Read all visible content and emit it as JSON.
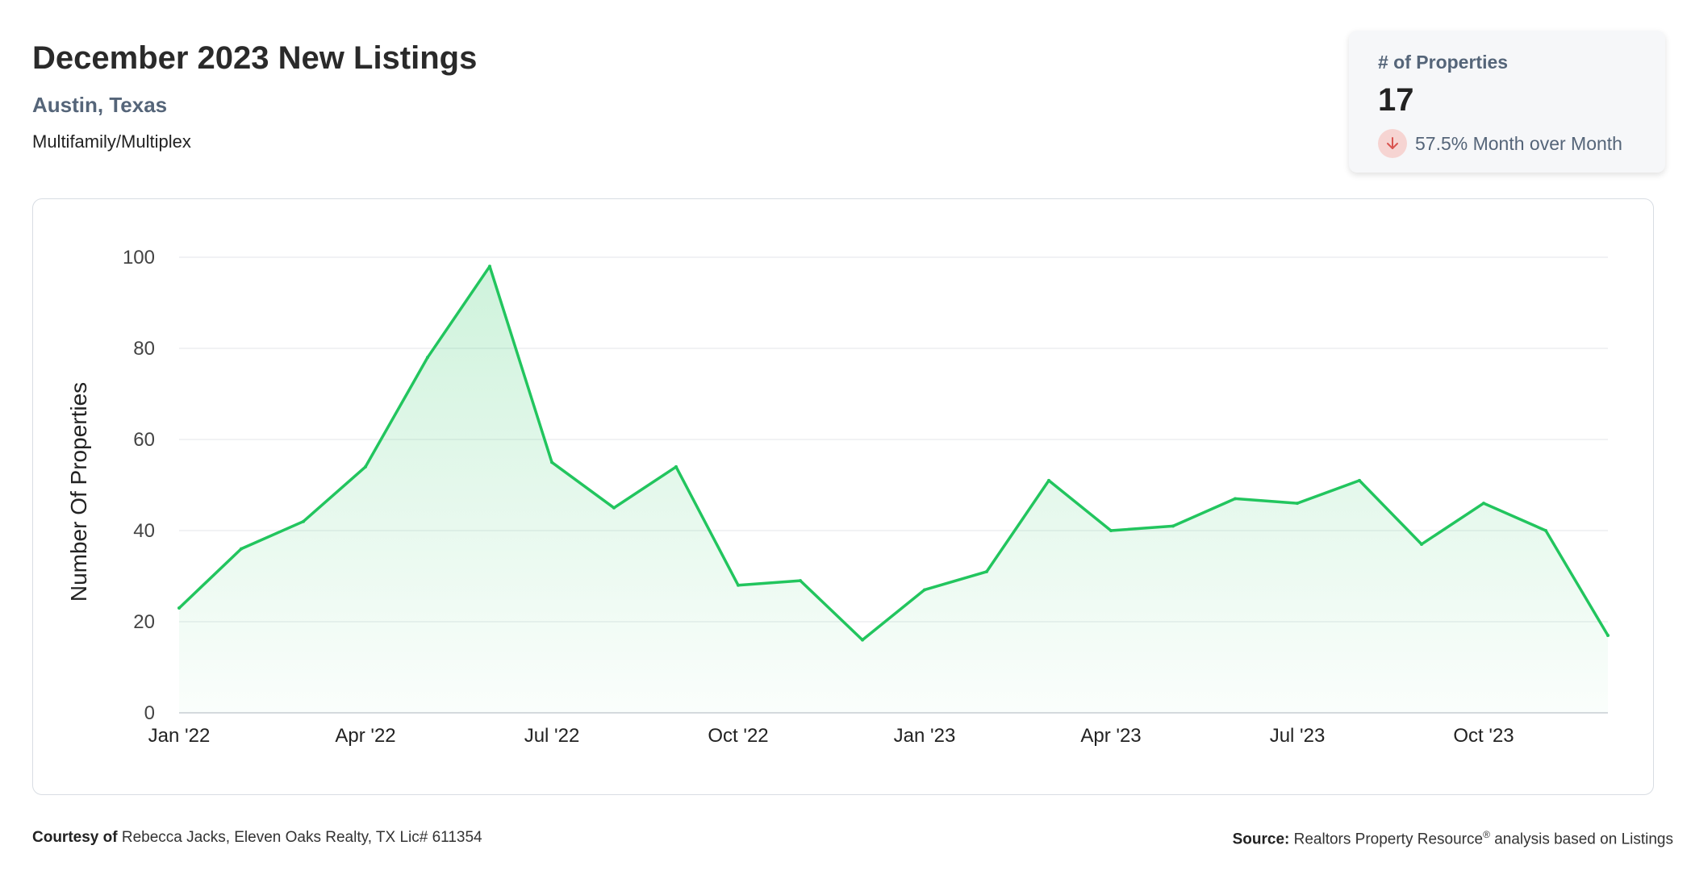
{
  "header": {
    "title": "December 2023 New Listings",
    "location": "Austin, Texas",
    "category": "Multifamily/Multiplex"
  },
  "kpi": {
    "label": "# of Properties",
    "value": "17",
    "change_text": "57.5% Month over Month",
    "direction_icon": "arrow-down-icon",
    "accent_color": "#d9534f"
  },
  "footer": {
    "courtesy_label": "Courtesy of",
    "courtesy_text": "Rebecca Jacks, Eleven Oaks Realty, TX Lic# 611354",
    "source_label": "Source:",
    "source_text": "Realtors Property Resource",
    "source_mark": "®",
    "source_suffix": "analysis based on Listings"
  },
  "chart_data": {
    "type": "area",
    "title": "",
    "xlabel": "",
    "ylabel": "Number Of Properties",
    "x": [
      "Jan '22",
      "Feb '22",
      "Mar '22",
      "Apr '22",
      "May '22",
      "Jun '22",
      "Jul '22",
      "Aug '22",
      "Sep '22",
      "Oct '22",
      "Nov '22",
      "Dec '22",
      "Jan '23",
      "Feb '23",
      "Mar '23",
      "Apr '23",
      "May '23",
      "Jun '23",
      "Jul '23",
      "Aug '23",
      "Sep '23",
      "Oct '23",
      "Nov '23",
      "Dec '23"
    ],
    "series": [
      {
        "values": [
          23,
          36,
          42,
          54,
          78,
          98,
          55,
          45,
          54,
          28,
          29,
          16,
          27,
          31,
          51,
          40,
          41,
          47,
          46,
          51,
          37,
          46,
          40,
          17
        ],
        "color": "#22c55e"
      }
    ],
    "x_tick_labels": [
      "Jan '22",
      "Apr '22",
      "Jul '22",
      "Oct '22",
      "Jan '23",
      "Apr '23",
      "Jul '23",
      "Oct '23"
    ],
    "y_ticks": [
      0,
      20,
      40,
      60,
      80,
      100
    ],
    "ylim": [
      0,
      100
    ],
    "grid": true,
    "legend": "none"
  }
}
